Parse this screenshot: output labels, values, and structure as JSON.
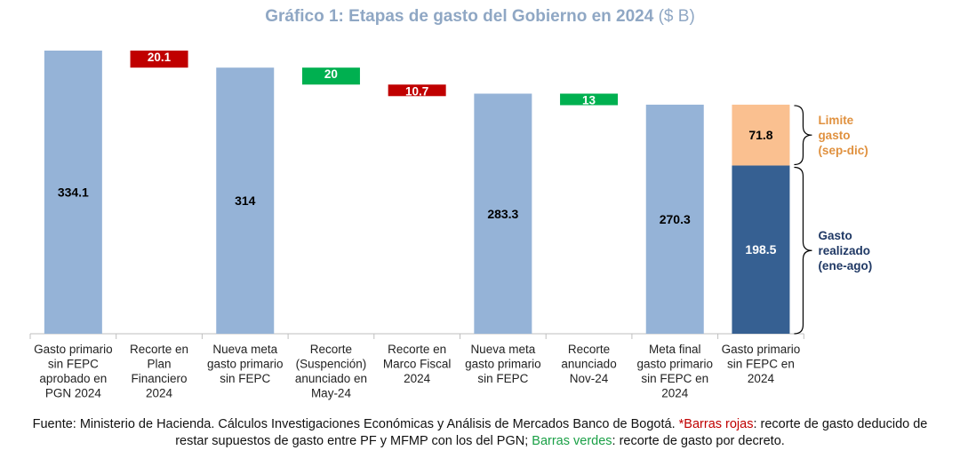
{
  "title": {
    "main": "Gráfico 1: Etapas de gasto del Gobierno en 2024",
    "unit": "($ B)"
  },
  "chart_data": {
    "type": "bar",
    "subtype": "waterfall",
    "title": "Gráfico 1: Etapas de gasto del Gobierno en 2024 ($ B)",
    "categories": [
      [
        "Gasto primario",
        "sin FEPC",
        "aprobado en",
        "PGN 2024"
      ],
      [
        "Recorte en",
        "Plan",
        "Financiero",
        "2024"
      ],
      [
        "Nueva meta",
        "gasto primario",
        "sin FEPC"
      ],
      [
        "Recorte",
        "(Suspención)",
        "anunciado en",
        "May-24"
      ],
      [
        "Recorte en",
        "Marco Fiscal",
        "2024"
      ],
      [
        "Nueva meta",
        "gasto primario",
        "sin FEPC"
      ],
      [
        "Recorte",
        "anunciado",
        "Nov-24"
      ],
      [
        "Meta final",
        "gasto primario",
        "sin FEPC en",
        "2024"
      ],
      [
        "Gasto primario",
        "sin FEPC en",
        "2024"
      ]
    ],
    "bars": [
      {
        "kind": "total",
        "value": 334.1,
        "label": "334.1",
        "color": "#95b3d7"
      },
      {
        "kind": "decrease",
        "value": 20.1,
        "label": "20.1",
        "color": "#c00000",
        "note": "red"
      },
      {
        "kind": "total",
        "value": 314,
        "label": "314",
        "color": "#95b3d7"
      },
      {
        "kind": "decrease",
        "value": 20,
        "label": "20",
        "color": "#00b050",
        "note": "green"
      },
      {
        "kind": "decrease",
        "value": 10.7,
        "label": "10.7",
        "color": "#c00000",
        "note": "red"
      },
      {
        "kind": "total",
        "value": 283.3,
        "label": "283.3",
        "color": "#95b3d7"
      },
      {
        "kind": "decrease",
        "value": 13,
        "label": "13",
        "color": "#00b050",
        "note": "green"
      },
      {
        "kind": "total",
        "value": 270.3,
        "label": "270.3",
        "color": "#95b3d7"
      },
      {
        "kind": "stacked",
        "segments": [
          {
            "name": "Gasto realizado (ene-ago)",
            "value": 198.5,
            "label": "198.5",
            "color": "#366092"
          },
          {
            "name": "Limite gasto (sep-dic)",
            "value": 71.8,
            "label": "71.8",
            "color": "#fac090"
          }
        ]
      }
    ],
    "annotations": [
      {
        "lines": [
          "Limite",
          "gasto",
          "(sep-dic)"
        ],
        "color": "#e0913f",
        "segment": "Limite gasto (sep-dic)"
      },
      {
        "lines": [
          "Gasto",
          "realizado",
          "(ene-ago)"
        ],
        "color": "#1f3864",
        "segment": "Gasto realizado (ene-ago)"
      }
    ],
    "ylim": [
      0,
      334.1
    ],
    "grid": false,
    "legend": "none"
  },
  "source": {
    "prefix": "Fuente: Ministerio de Hacienda. Cálculos Investigaciones Económicas y Análisis de Mercados Banco de Bogotá. ",
    "red_term": "*Barras rojas",
    "red_desc": ": recorte de gasto deducido de restar supuestos de gasto entre PF y MFMP con los del PGN; ",
    "green_term": "Barras verdes",
    "green_desc": ": recorte de gasto por decreto."
  }
}
